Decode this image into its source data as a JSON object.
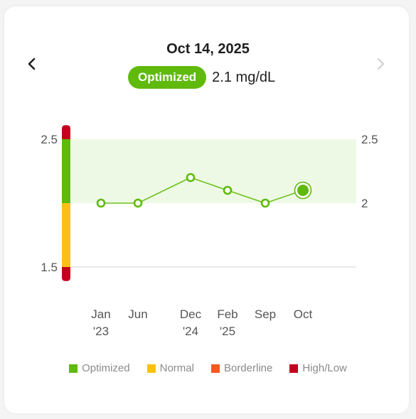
{
  "header": {
    "date": "Oct 14, 2025",
    "status_badge": "Optimized",
    "reading": "2.1 mg/dL"
  },
  "nav": {
    "prev_icon": "chevron-left-icon",
    "next_icon": "chevron-right-icon"
  },
  "colors": {
    "optimized": "#5fba0c",
    "normal": "#fbc013",
    "borderline": "#f25a1f",
    "high_low": "#c4001f",
    "band_fill": "#eef9e5",
    "line": "#6cc21c"
  },
  "chart_data": {
    "type": "line",
    "x_labels": [
      [
        "Jan",
        "'23"
      ],
      [
        "Jun",
        ""
      ],
      [
        "Dec",
        "'24"
      ],
      [
        "Feb",
        "'25"
      ],
      [
        "Sep",
        ""
      ],
      [
        "Oct",
        ""
      ]
    ],
    "values": [
      2.0,
      2.0,
      2.2,
      2.1,
      2.0,
      2.1
    ],
    "highlight_index": 5,
    "ylim": [
      1.5,
      2.5
    ],
    "left_ticks": [
      "2.5",
      "1.5"
    ],
    "right_ticks": [
      "2.5",
      "2"
    ],
    "optimal_band": [
      2.0,
      2.5
    ],
    "range_bar": [
      {
        "from": 2.5,
        "to": 2.61,
        "zone": "high_low"
      },
      {
        "from": 2.0,
        "to": 2.5,
        "zone": "optimized"
      },
      {
        "from": 1.5,
        "to": 2.0,
        "zone": "normal"
      },
      {
        "from": 1.39,
        "to": 1.5,
        "zone": "high_low"
      }
    ]
  },
  "legend": [
    {
      "label": "Optimized",
      "zone": "optimized"
    },
    {
      "label": "Normal",
      "zone": "normal"
    },
    {
      "label": "Borderline",
      "zone": "borderline"
    },
    {
      "label": "High/Low",
      "zone": "high_low"
    }
  ]
}
